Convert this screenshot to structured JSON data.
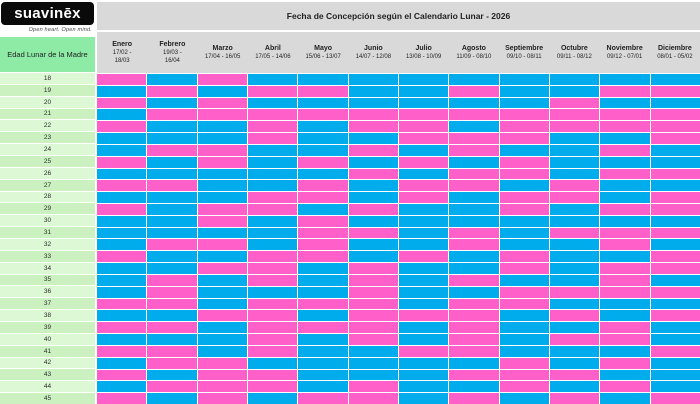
{
  "brand": {
    "logo_text": "suavinēx",
    "tagline": "Open heart. Open mind."
  },
  "title": "Fecha de Concepción según el Calendario Lunar - 2026",
  "table": {
    "row_header_label": "Edad Lunar de la Madre",
    "months": [
      {
        "name": "Enero",
        "dates_line1": "17/02 -",
        "dates_line2": "18/03"
      },
      {
        "name": "Febrero",
        "dates_line1": "19/03 -",
        "dates_line2": "16/04"
      },
      {
        "name": "Marzo",
        "dates_line1": "17/04 - 16/05",
        "dates_line2": ""
      },
      {
        "name": "Abril",
        "dates_line1": "17/05 - 14/06",
        "dates_line2": ""
      },
      {
        "name": "Mayo",
        "dates_line1": "15/06 - 13/07",
        "dates_line2": ""
      },
      {
        "name": "Junio",
        "dates_line1": "14/07 - 12/08",
        "dates_line2": ""
      },
      {
        "name": "Julio",
        "dates_line1": "13/08 - 10/09",
        "dates_line2": ""
      },
      {
        "name": "Agosto",
        "dates_line1": "11/09 - 08/10",
        "dates_line2": ""
      },
      {
        "name": "Septiembre",
        "dates_line1": "09/10 - 08/11",
        "dates_line2": ""
      },
      {
        "name": "Octubre",
        "dates_line1": "09/11 - 08/12",
        "dates_line2": ""
      },
      {
        "name": "Noviembre",
        "dates_line1": "09/12 - 07/01",
        "dates_line2": ""
      },
      {
        "name": "Diciembre",
        "dates_line1": "08/01 - 05/02",
        "dates_line2": ""
      }
    ],
    "ages": [
      18,
      19,
      20,
      21,
      22,
      23,
      24,
      25,
      26,
      27,
      28,
      29,
      30,
      31,
      32,
      33,
      34,
      35,
      36,
      37,
      38,
      39,
      40,
      41,
      42,
      43,
      44,
      45
    ],
    "grid": [
      "GBGBBBBBBBBB",
      "BGBGGBBGBBGG",
      "GBGBBBBBBGBB",
      "BGGGGGGGGGGG",
      "GBBGBGGBGGGG",
      "BBBGBBGGGBBG",
      "BGGBBGBGBBGB",
      "GBGBGBGBGBBB",
      "BBBBBGBGGBGG",
      "GGBBGBGGBGBB",
      "BBBGGBGBGGBG",
      "GBGGBGBBGBGG",
      "BBGBGBBBBBBB",
      "BBBBGGBGBGGG",
      "BGGBGBBGBBGB",
      "GBBGGBGBGBBG",
      "BBGGBGBBGBGG",
      "BGBGBGBGBBGB",
      "BGBBBGBBGGGG",
      "GGBGGGBGGBBB",
      "BBGGBGGGBGBG",
      "GGBGGGBGBBGB",
      "BBBGBGBGBGGB",
      "GGBGBBGGBBBG",
      "BGGBBBBBGBGB",
      "GBGGBBBGGGBB",
      "BGGGBGBBGBGB",
      "GBGBGGBGBGBG"
    ]
  },
  "colors": {
    "girl": "#ff5fc8",
    "boy": "#00aceb",
    "age_cell": "#dcf8d4",
    "age_cell_alt": "#ccf1c1",
    "header_green": "#8deba6",
    "gray_bar": "#d9d9d9"
  }
}
